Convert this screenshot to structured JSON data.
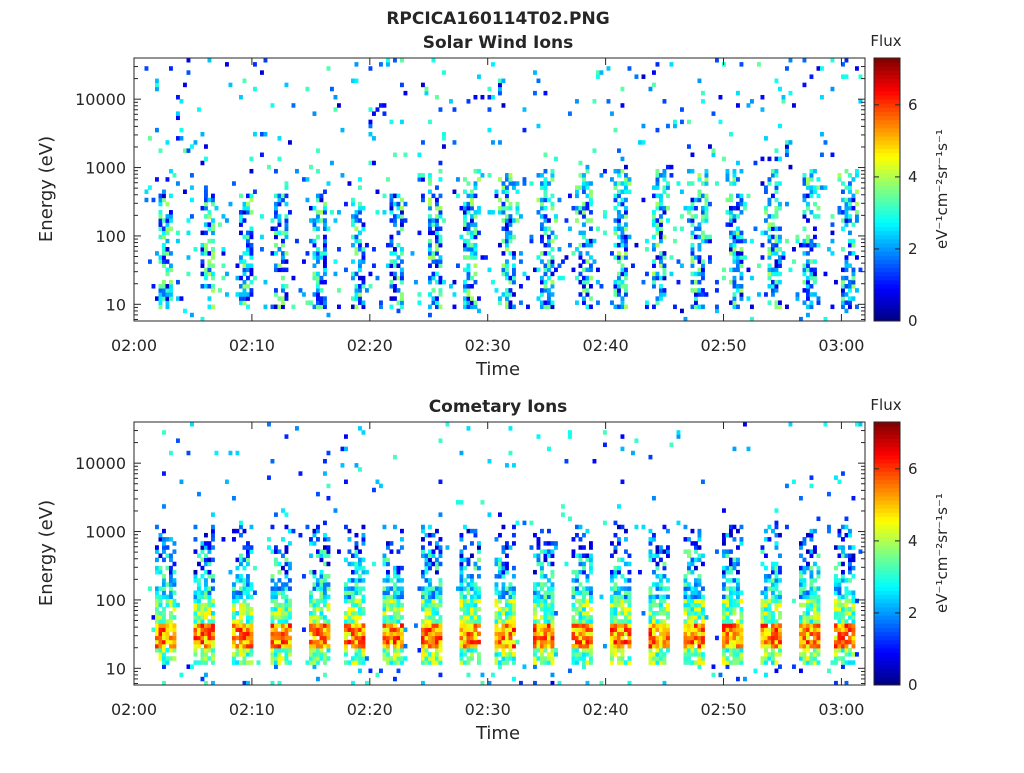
{
  "figure_title": "RPCICA160114T02.PNG",
  "colorbar": {
    "title": "Flux",
    "units_label": "eV⁻¹cm⁻²sr⁻¹s⁻¹",
    "ticks": [
      "0",
      "2",
      "4",
      "6"
    ],
    "range": [
      0,
      7.3
    ],
    "colormap": "jet"
  },
  "chart_data": [
    {
      "type": "heatmap",
      "title": "Solar Wind Ions",
      "xlabel": "Time",
      "ylabel": "Energy (eV)",
      "x_tick_labels": [
        "02:00",
        "02:10",
        "02:20",
        "02:30",
        "02:40",
        "02:50",
        "03:00"
      ],
      "y_tick_labels": [
        "10",
        "100",
        "1000",
        "10000"
      ],
      "xlim": [
        "02:00",
        "03:02"
      ],
      "ylim": [
        5.7,
        40000
      ],
      "yscale": "log",
      "z_range": [
        0,
        7.3
      ],
      "sweep_times_min": [
        2.8,
        6.2,
        9.4,
        12.6,
        15.8,
        19.0,
        22.2,
        25.4,
        28.6,
        31.8,
        35.0,
        38.2,
        41.4,
        44.6,
        47.8,
        51.0,
        54.2,
        57.4,
        60.6
      ],
      "description": "Sparse low-flux (0.5-3.5) speckle across 10-30000 eV; vertical streaks around 30-300 eV with flux up to ~4 near each sweep time; columns extending to ~1000 eV after 02:30"
    },
    {
      "type": "heatmap",
      "title": "Cometary Ions",
      "xlabel": "Time",
      "ylabel": "Energy (eV)",
      "x_tick_labels": [
        "02:00",
        "02:10",
        "02:20",
        "02:30",
        "02:40",
        "02:50",
        "03:00"
      ],
      "y_tick_labels": [
        "10",
        "100",
        "1000",
        "10000"
      ],
      "xlim": [
        "02:00",
        "03:02"
      ],
      "ylim": [
        5.7,
        40000
      ],
      "yscale": "log",
      "z_range": [
        0,
        7.3
      ],
      "sweep_times_min": [
        2.8,
        6.0,
        9.2,
        12.4,
        15.6,
        18.8,
        22.0,
        25.2,
        28.4,
        31.6,
        34.8,
        38.0,
        41.2,
        44.4,
        47.6,
        50.8,
        54.0,
        57.2,
        60.4
      ],
      "description": "Periodic vertical columns at each sweep time from ~12 to ~1000 eV; peak flux ~6-6.5 at 20-40 eV; sparse speckle above 1000 eV"
    }
  ]
}
